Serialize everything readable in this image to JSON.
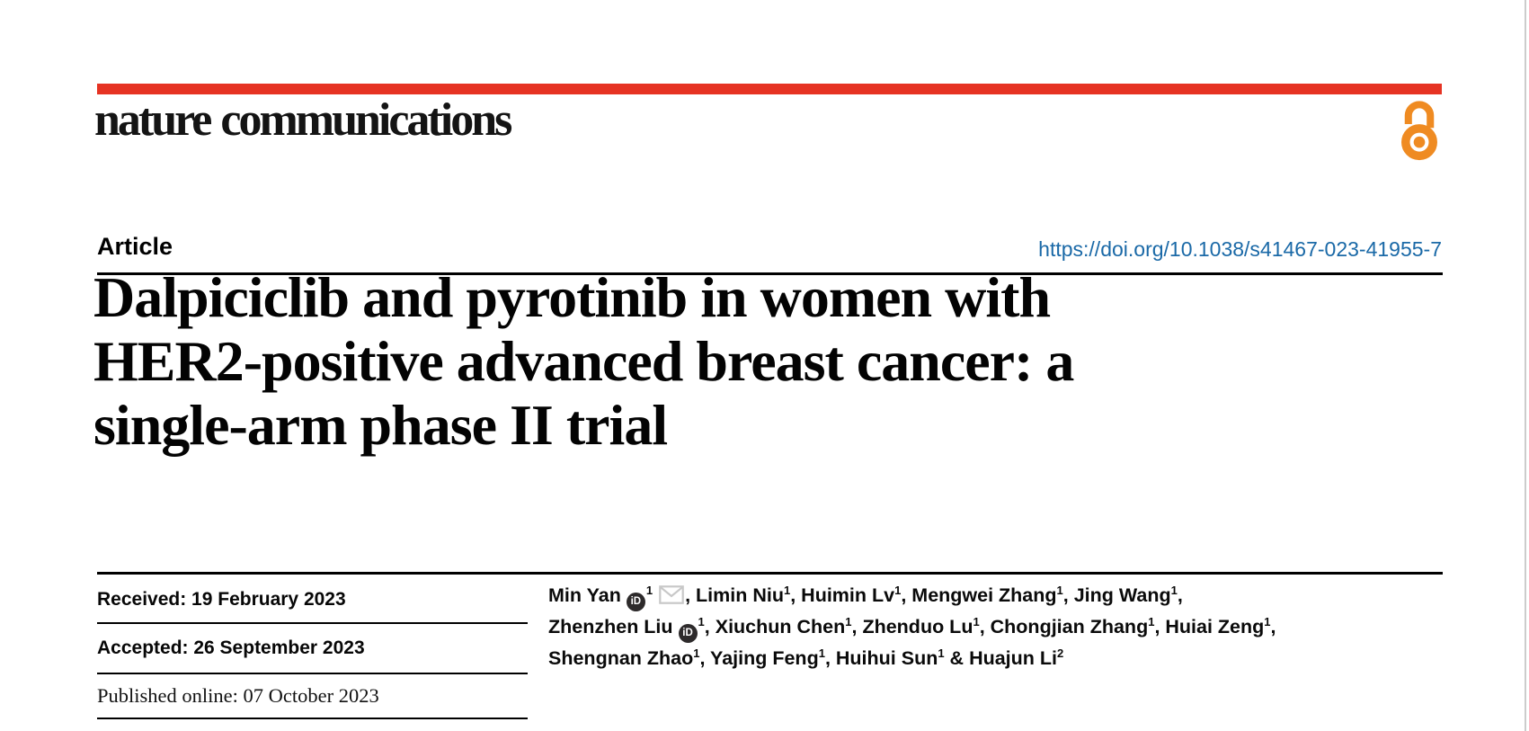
{
  "colors": {
    "brand_red": "#e63323",
    "link_blue": "#1a69a7",
    "open_access_orange": "#ef8b22",
    "rule_black": "#000000",
    "envelope_gray": "#c8c8c8"
  },
  "masthead": {
    "logo_text": "nature communications",
    "open_access_icon": "open-padlock-icon"
  },
  "article": {
    "kicker": "Article",
    "doi": "https://doi.org/10.1038/s41467-023-41955-7",
    "title_lines": [
      "Dalpiciclib and pyrotinib in women with",
      "HER2-positive advanced breast cancer: a",
      "single-arm phase II trial"
    ]
  },
  "history": {
    "received": "Received: 19 February 2023",
    "accepted": "Accepted: 26 September 2023",
    "published": "Published online: 07 October 2023"
  },
  "authors": {
    "orcid_icon_text": "iD",
    "list": [
      {
        "name": "Min Yan",
        "orcid": true,
        "sup": "1",
        "email": true,
        "sep": ", "
      },
      {
        "name": "Limin Niu",
        "sup": "1",
        "sep": ", "
      },
      {
        "name": "Huimin Lv",
        "sup": "1",
        "sep": ", "
      },
      {
        "name": "Mengwei Zhang",
        "sup": "1",
        "sep": ", "
      },
      {
        "name": "Jing Wang",
        "sup": "1",
        "sep": ",",
        "br": true
      },
      {
        "name": "Zhenzhen Liu",
        "orcid": true,
        "sup": "1",
        "sep": ", "
      },
      {
        "name": "Xiuchun Chen",
        "sup": "1",
        "sep": ", "
      },
      {
        "name": "Zhenduo Lu",
        "sup": "1",
        "sep": ", "
      },
      {
        "name": "Chongjian Zhang",
        "sup": "1",
        "sep": ", "
      },
      {
        "name": "Huiai Zeng",
        "sup": "1",
        "sep": ",",
        "br": true
      },
      {
        "name": "Shengnan Zhao",
        "sup": "1",
        "sep": ", "
      },
      {
        "name": "Yajing Feng",
        "sup": "1",
        "sep": ", "
      },
      {
        "name": "Huihui Sun",
        "sup": "1",
        "sep": " & "
      },
      {
        "name": "Huajun Li",
        "sup": "2",
        "sep": ""
      }
    ]
  }
}
